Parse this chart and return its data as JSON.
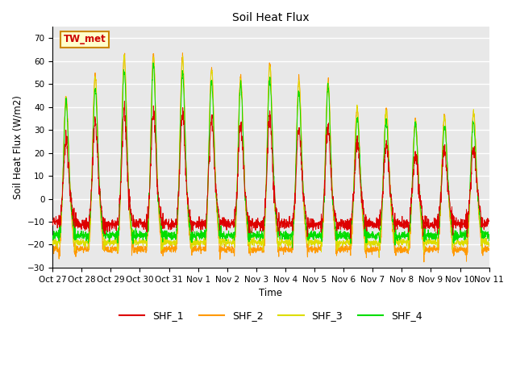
{
  "title": "Soil Heat Flux",
  "ylabel": "Soil Heat Flux (W/m2)",
  "xlabel": "Time",
  "ylim": [
    -30,
    75
  ],
  "yticks": [
    -30,
    -20,
    -10,
    0,
    10,
    20,
    30,
    40,
    50,
    60,
    70
  ],
  "colors": {
    "SHF_1": "#dd0000",
    "SHF_2": "#ff9900",
    "SHF_3": "#dddd00",
    "SHF_4": "#00dd00"
  },
  "background_color": "#e8e8e8",
  "annotation_text": "TW_met",
  "annotation_bg": "#ffffcc",
  "annotation_border": "#cc8800",
  "x_tick_labels": [
    "Oct 27",
    "Oct 28",
    "Oct 29",
    "Oct 30",
    "Oct 31",
    "Nov 1",
    "Nov 2",
    "Nov 3",
    "Nov 4",
    "Nov 5",
    "Nov 6",
    "Nov 7",
    "Nov 8",
    "Nov 9",
    "Nov 10",
    "Nov 11"
  ],
  "n_days": 15,
  "points_per_day": 144,
  "day_peak_amplitudes": [
    47,
    57,
    66,
    66,
    65,
    60,
    56,
    62,
    55,
    54,
    42,
    41,
    36,
    38,
    40
  ],
  "night_base": -20
}
